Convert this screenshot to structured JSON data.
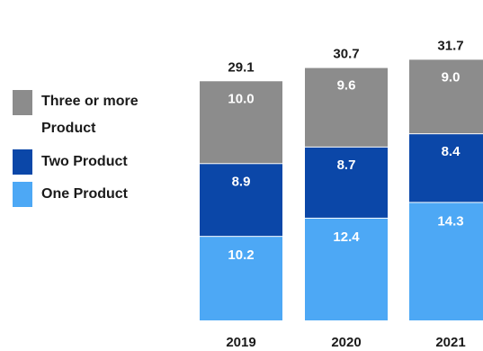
{
  "chart_data": {
    "type": "bar",
    "stacked": true,
    "categories": [
      "2019",
      "2020",
      "2021"
    ],
    "totals": [
      "29.1",
      "30.7",
      "31.7"
    ],
    "series": [
      {
        "name": "One Product",
        "values": [
          10.2,
          12.4,
          14.3
        ],
        "labels": [
          "10.2",
          "12.4",
          "14.3"
        ],
        "color": "#4da8f5"
      },
      {
        "name": "Two Product",
        "values": [
          8.9,
          8.7,
          8.4
        ],
        "labels": [
          "8.9",
          "8.7",
          "8.4"
        ],
        "color": "#0b47a8"
      },
      {
        "name": "Three or more\nProduct",
        "values": [
          10.0,
          9.6,
          9.0
        ],
        "labels": [
          "10.0",
          "9.6",
          "9.0"
        ],
        "color": "#8c8c8c"
      }
    ],
    "legend": {
      "position": "left",
      "items": [
        {
          "label": "Three or more\nProduct",
          "color": "#8c8c8c"
        },
        {
          "label": "Two Product",
          "color": "#0b47a8"
        },
        {
          "label": "One Product",
          "color": "#4da8f5"
        }
      ]
    },
    "title": "",
    "xlabel": "",
    "ylabel": "",
    "grid": false
  }
}
